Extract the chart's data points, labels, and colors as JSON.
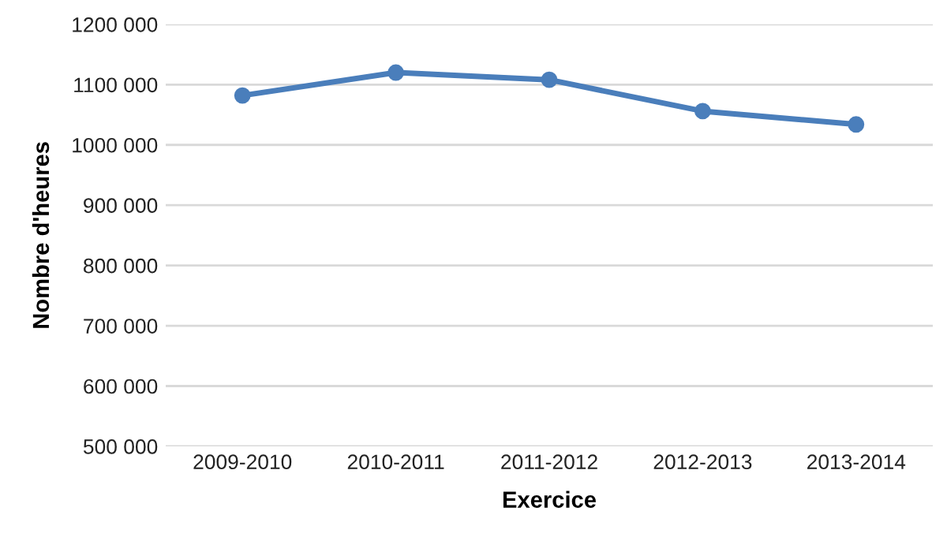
{
  "chart_data": {
    "type": "line",
    "xlabel": "Exercice",
    "ylabel": "Nombre d'heures",
    "categories": [
      "2009-2010",
      "2010-2011",
      "2011-2012",
      "2012-2013",
      "2013-2014"
    ],
    "series": [
      {
        "color": "#4a7ebb",
        "values": [
          1082000,
          1120000,
          1108000,
          1056000,
          1034000
        ]
      }
    ],
    "ylim": [
      500000,
      1200000
    ],
    "yticks": [
      {
        "value": 500000,
        "label": "500 000"
      },
      {
        "value": 600000,
        "label": "600 000"
      },
      {
        "value": 700000,
        "label": "700 000"
      },
      {
        "value": 800000,
        "label": "800 000"
      },
      {
        "value": 900000,
        "label": "900 000"
      },
      {
        "value": 1000000,
        "label": "1000 000"
      },
      {
        "value": 1100000,
        "label": "1100 000"
      },
      {
        "value": 1200000,
        "label": "1200 000"
      }
    ],
    "grid": "y",
    "marker": "circle",
    "line_style": "solid"
  }
}
